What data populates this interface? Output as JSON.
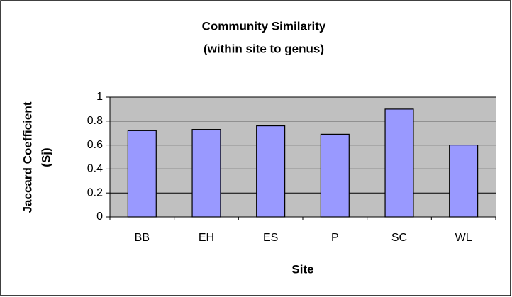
{
  "chart_data": {
    "type": "bar",
    "title": [
      "Community Similarity",
      "(within site to genus)"
    ],
    "y_label": [
      "Jaccard Coefficient",
      "(Sj)"
    ],
    "x_label": "Site",
    "categories": [
      "BB",
      "EH",
      "ES",
      "P",
      "SC",
      "WL"
    ],
    "values": [
      0.72,
      0.73,
      0.76,
      0.69,
      0.9,
      0.6
    ],
    "color": "#9999ff",
    "ylim": [
      0,
      1
    ],
    "yticks": [
      0,
      0.2,
      0.4,
      0.6,
      0.8,
      1
    ],
    "grid": true
  }
}
